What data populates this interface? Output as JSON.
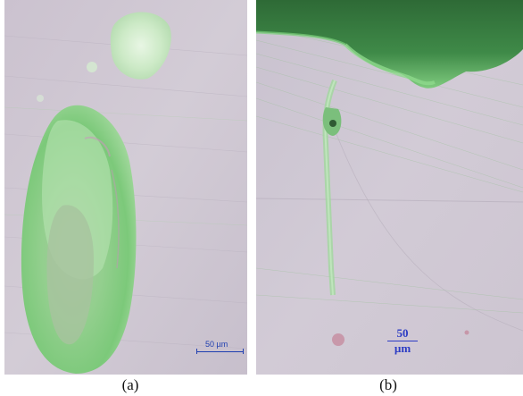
{
  "figure": {
    "panels": [
      {
        "caption": "(a)",
        "scale_bar": "50 µm",
        "colors": {
          "background": "#cdc4d1",
          "deposit": "#8fd08f",
          "deposit_light": "#d8f0d5"
        }
      },
      {
        "caption": "(b)",
        "scale_bar_value": "50",
        "scale_bar_unit": "µm",
        "colors": {
          "background": "#cfc8d3",
          "deposit_dark": "#2e6e3a",
          "deposit": "#86cc86",
          "stain": "#c2768e"
        }
      }
    ]
  }
}
